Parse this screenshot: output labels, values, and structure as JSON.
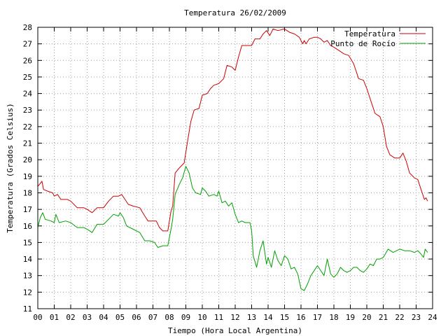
{
  "chart_data": {
    "type": "line",
    "title": "Temperatura 26/02/2009",
    "xlabel": "Tiempo (Hora Local Argentina)",
    "ylabel": "Temperatura (Grados Celsius)",
    "xlim": [
      0,
      24
    ],
    "ylim": [
      11,
      28
    ],
    "x_tick_labels": [
      "00",
      "01",
      "02",
      "03",
      "04",
      "05",
      "06",
      "07",
      "08",
      "09",
      "10",
      "11",
      "12",
      "13",
      "14",
      "15",
      "16",
      "17",
      "18",
      "19",
      "20",
      "21",
      "22",
      "23",
      "24"
    ],
    "y_ticks": [
      11,
      12,
      13,
      14,
      15,
      16,
      17,
      18,
      19,
      20,
      21,
      22,
      23,
      24,
      25,
      26,
      27,
      28
    ],
    "grid": true,
    "legend_position": "top-right",
    "series": [
      {
        "name": "Temperatura",
        "color": "#cc0000",
        "points": [
          [
            0.0,
            18.4
          ],
          [
            0.1,
            18.5
          ],
          [
            0.25,
            18.7
          ],
          [
            0.35,
            18.2
          ],
          [
            0.6,
            18.1
          ],
          [
            0.9,
            18.0
          ],
          [
            1.0,
            17.8
          ],
          [
            1.2,
            17.9
          ],
          [
            1.4,
            17.6
          ],
          [
            1.8,
            17.6
          ],
          [
            2.0,
            17.5
          ],
          [
            2.4,
            17.1
          ],
          [
            2.8,
            17.1
          ],
          [
            3.0,
            17.0
          ],
          [
            3.3,
            16.8
          ],
          [
            3.6,
            17.1
          ],
          [
            4.0,
            17.1
          ],
          [
            4.3,
            17.5
          ],
          [
            4.6,
            17.8
          ],
          [
            4.9,
            17.8
          ],
          [
            5.1,
            17.9
          ],
          [
            5.3,
            17.6
          ],
          [
            5.5,
            17.3
          ],
          [
            5.8,
            17.2
          ],
          [
            6.2,
            17.1
          ],
          [
            6.5,
            16.6
          ],
          [
            6.7,
            16.3
          ],
          [
            7.2,
            16.3
          ],
          [
            7.4,
            15.9
          ],
          [
            7.6,
            15.7
          ],
          [
            7.9,
            15.7
          ],
          [
            8.1,
            16.9
          ],
          [
            8.2,
            17.2
          ],
          [
            8.35,
            19.2
          ],
          [
            8.6,
            19.5
          ],
          [
            8.9,
            19.8
          ],
          [
            9.1,
            21.1
          ],
          [
            9.3,
            22.3
          ],
          [
            9.5,
            23.0
          ],
          [
            9.8,
            23.1
          ],
          [
            10.0,
            23.9
          ],
          [
            10.3,
            24.0
          ],
          [
            10.5,
            24.3
          ],
          [
            10.7,
            24.5
          ],
          [
            11.0,
            24.6
          ],
          [
            11.3,
            24.9
          ],
          [
            11.5,
            25.7
          ],
          [
            11.8,
            25.6
          ],
          [
            12.0,
            25.4
          ],
          [
            12.2,
            26.2
          ],
          [
            12.4,
            26.9
          ],
          [
            12.7,
            26.9
          ],
          [
            13.0,
            26.9
          ],
          [
            13.2,
            27.3
          ],
          [
            13.5,
            27.3
          ],
          [
            13.7,
            27.6
          ],
          [
            13.9,
            27.8
          ],
          [
            14.1,
            27.5
          ],
          [
            14.3,
            27.9
          ],
          [
            14.6,
            27.8
          ],
          [
            15.0,
            27.9
          ],
          [
            15.3,
            27.7
          ],
          [
            15.6,
            27.6
          ],
          [
            15.9,
            27.4
          ],
          [
            16.1,
            27.0
          ],
          [
            16.2,
            27.2
          ],
          [
            16.3,
            27.0
          ],
          [
            16.5,
            27.3
          ],
          [
            16.8,
            27.4
          ],
          [
            17.0,
            27.4
          ],
          [
            17.2,
            27.3
          ],
          [
            17.4,
            27.1
          ],
          [
            17.6,
            27.2
          ],
          [
            17.8,
            26.9
          ],
          [
            18.0,
            26.8
          ],
          [
            18.3,
            26.6
          ],
          [
            18.6,
            26.4
          ],
          [
            18.9,
            26.3
          ],
          [
            19.2,
            25.8
          ],
          [
            19.5,
            24.9
          ],
          [
            19.8,
            24.8
          ],
          [
            20.0,
            24.3
          ],
          [
            20.3,
            23.4
          ],
          [
            20.5,
            22.8
          ],
          [
            20.8,
            22.6
          ],
          [
            21.0,
            22.0
          ],
          [
            21.2,
            20.8
          ],
          [
            21.4,
            20.3
          ],
          [
            21.7,
            20.1
          ],
          [
            22.0,
            20.1
          ],
          [
            22.2,
            20.4
          ],
          [
            22.4,
            19.9
          ],
          [
            22.6,
            19.2
          ],
          [
            22.9,
            18.9
          ],
          [
            23.1,
            18.8
          ],
          [
            23.3,
            18.2
          ],
          [
            23.5,
            17.6
          ],
          [
            23.6,
            17.7
          ],
          [
            23.7,
            17.5
          ]
        ]
      },
      {
        "name": "Punto de Rocío",
        "color": "#00a000",
        "points": [
          [
            0.0,
            15.9
          ],
          [
            0.15,
            16.5
          ],
          [
            0.3,
            16.8
          ],
          [
            0.45,
            16.4
          ],
          [
            0.8,
            16.3
          ],
          [
            1.0,
            16.2
          ],
          [
            1.1,
            16.7
          ],
          [
            1.3,
            16.2
          ],
          [
            1.7,
            16.3
          ],
          [
            2.0,
            16.2
          ],
          [
            2.4,
            15.9
          ],
          [
            2.8,
            15.9
          ],
          [
            3.0,
            15.8
          ],
          [
            3.3,
            15.6
          ],
          [
            3.6,
            16.1
          ],
          [
            4.0,
            16.1
          ],
          [
            4.3,
            16.4
          ],
          [
            4.6,
            16.7
          ],
          [
            4.9,
            16.6
          ],
          [
            5.0,
            16.8
          ],
          [
            5.2,
            16.5
          ],
          [
            5.4,
            16.0
          ],
          [
            5.8,
            15.8
          ],
          [
            6.2,
            15.6
          ],
          [
            6.5,
            15.1
          ],
          [
            6.8,
            15.1
          ],
          [
            7.1,
            15.0
          ],
          [
            7.3,
            14.7
          ],
          [
            7.6,
            14.8
          ],
          [
            7.9,
            14.8
          ],
          [
            8.1,
            15.8
          ],
          [
            8.2,
            16.4
          ],
          [
            8.35,
            17.9
          ],
          [
            8.6,
            18.5
          ],
          [
            8.8,
            18.9
          ],
          [
            9.0,
            19.6
          ],
          [
            9.2,
            19.2
          ],
          [
            9.4,
            18.3
          ],
          [
            9.6,
            18.0
          ],
          [
            9.9,
            17.9
          ],
          [
            10.0,
            18.3
          ],
          [
            10.2,
            18.1
          ],
          [
            10.4,
            17.8
          ],
          [
            10.7,
            17.9
          ],
          [
            10.9,
            17.8
          ],
          [
            11.0,
            18.1
          ],
          [
            11.2,
            17.4
          ],
          [
            11.4,
            17.5
          ],
          [
            11.6,
            17.2
          ],
          [
            11.8,
            17.4
          ],
          [
            12.0,
            16.7
          ],
          [
            12.2,
            16.2
          ],
          [
            12.4,
            16.3
          ],
          [
            12.6,
            16.2
          ],
          [
            12.9,
            16.2
          ],
          [
            13.0,
            15.7
          ],
          [
            13.1,
            14.2
          ],
          [
            13.3,
            13.5
          ],
          [
            13.5,
            14.5
          ],
          [
            13.7,
            15.1
          ],
          [
            13.9,
            13.7
          ],
          [
            14.0,
            14.1
          ],
          [
            14.2,
            13.5
          ],
          [
            14.4,
            14.5
          ],
          [
            14.6,
            13.9
          ],
          [
            14.8,
            13.6
          ],
          [
            15.0,
            14.2
          ],
          [
            15.2,
            14.0
          ],
          [
            15.4,
            13.4
          ],
          [
            15.6,
            13.5
          ],
          [
            15.8,
            13.1
          ],
          [
            16.0,
            12.2
          ],
          [
            16.2,
            12.1
          ],
          [
            16.4,
            12.5
          ],
          [
            16.6,
            13.0
          ],
          [
            16.8,
            13.3
          ],
          [
            17.0,
            13.6
          ],
          [
            17.2,
            13.3
          ],
          [
            17.4,
            13.0
          ],
          [
            17.6,
            14.0
          ],
          [
            17.8,
            13.1
          ],
          [
            18.0,
            12.9
          ],
          [
            18.2,
            13.1
          ],
          [
            18.4,
            13.5
          ],
          [
            18.6,
            13.3
          ],
          [
            18.8,
            13.2
          ],
          [
            19.0,
            13.3
          ],
          [
            19.2,
            13.5
          ],
          [
            19.4,
            13.5
          ],
          [
            19.6,
            13.3
          ],
          [
            19.8,
            13.2
          ],
          [
            20.0,
            13.4
          ],
          [
            20.2,
            13.7
          ],
          [
            20.4,
            13.6
          ],
          [
            20.6,
            14.0
          ],
          [
            20.8,
            14.0
          ],
          [
            21.0,
            14.1
          ],
          [
            21.3,
            14.6
          ],
          [
            21.6,
            14.4
          ],
          [
            22.0,
            14.6
          ],
          [
            22.3,
            14.5
          ],
          [
            22.6,
            14.5
          ],
          [
            22.9,
            14.4
          ],
          [
            23.1,
            14.5
          ],
          [
            23.3,
            14.3
          ],
          [
            23.45,
            14.1
          ],
          [
            23.55,
            14.6
          ],
          [
            23.7,
            14.4
          ]
        ]
      }
    ]
  }
}
